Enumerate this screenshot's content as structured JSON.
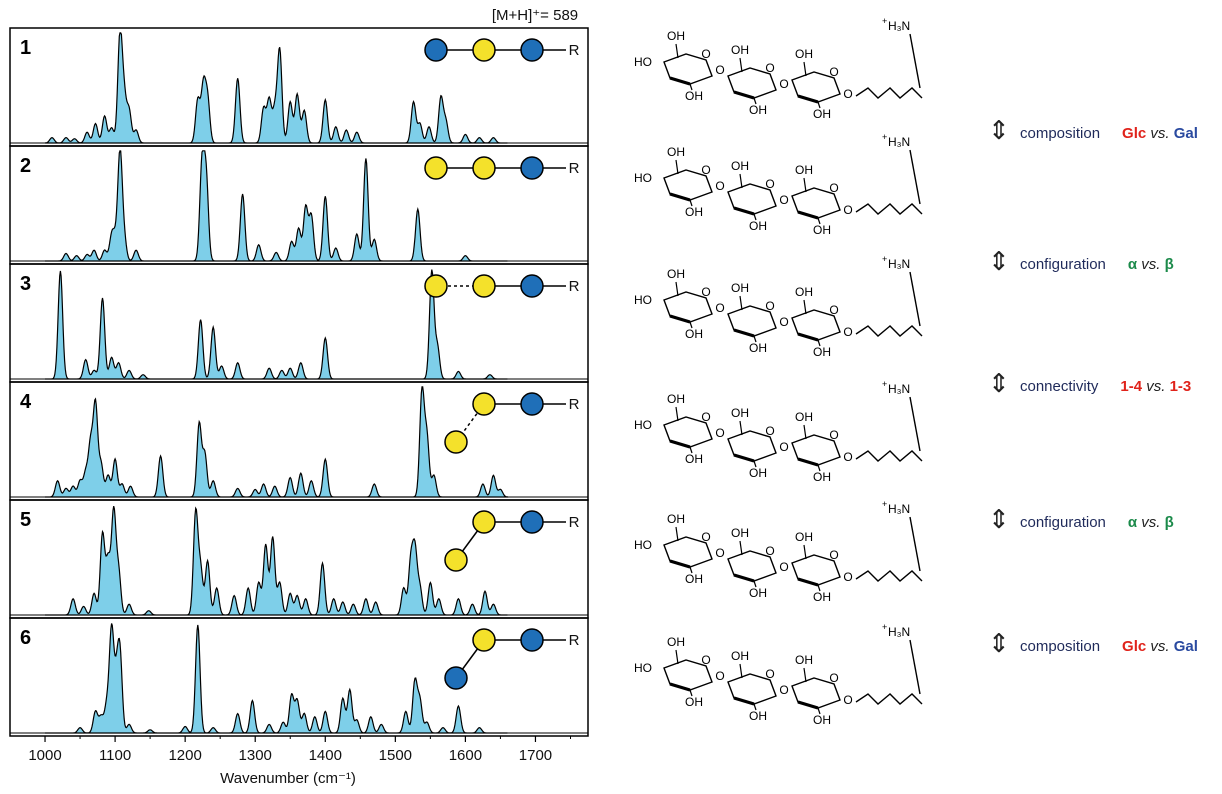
{
  "header_annotation": "[M+H]⁺= 589",
  "chart_data": {
    "type": "area",
    "xlabel": "Wavenumber (cm⁻¹)",
    "xlim": [
      950,
      1775
    ],
    "xticks": [
      1000,
      1100,
      1200,
      1300,
      1400,
      1500,
      1600,
      1700
    ],
    "ylim": [
      0,
      1
    ],
    "grid": false,
    "fill_color": "#7ecfe9",
    "line_color": "#000000",
    "spectra": [
      {
        "label": "1",
        "peaks": [
          [
            1010,
            0.05
          ],
          [
            1030,
            0.05
          ],
          [
            1042,
            0.04
          ],
          [
            1060,
            0.1
          ],
          [
            1072,
            0.18
          ],
          [
            1085,
            0.25
          ],
          [
            1095,
            0.14
          ],
          [
            1107,
            1.0
          ],
          [
            1113,
            0.4
          ],
          [
            1120,
            0.3
          ],
          [
            1130,
            0.12
          ],
          [
            1218,
            0.4
          ],
          [
            1226,
            0.52
          ],
          [
            1232,
            0.4
          ],
          [
            1275,
            0.6
          ],
          [
            1312,
            0.32
          ],
          [
            1320,
            0.4
          ],
          [
            1328,
            0.3
          ],
          [
            1335,
            0.86
          ],
          [
            1350,
            0.38
          ],
          [
            1360,
            0.45
          ],
          [
            1370,
            0.3
          ],
          [
            1400,
            0.4
          ],
          [
            1415,
            0.15
          ],
          [
            1430,
            0.12
          ],
          [
            1445,
            0.1
          ],
          [
            1526,
            0.38
          ],
          [
            1535,
            0.18
          ],
          [
            1548,
            0.15
          ],
          [
            1565,
            0.42
          ],
          [
            1572,
            0.2
          ],
          [
            1600,
            0.08
          ],
          [
            1620,
            0.05
          ],
          [
            1640,
            0.05
          ]
        ]
      },
      {
        "label": "2",
        "peaks": [
          [
            1030,
            0.07
          ],
          [
            1045,
            0.05
          ],
          [
            1060,
            0.06
          ],
          [
            1070,
            0.1
          ],
          [
            1085,
            0.1
          ],
          [
            1095,
            0.22
          ],
          [
            1100,
            0.17
          ],
          [
            1107,
            1.0
          ],
          [
            1113,
            0.2
          ],
          [
            1130,
            0.1
          ],
          [
            1224,
            0.88
          ],
          [
            1230,
            0.75
          ],
          [
            1282,
            0.62
          ],
          [
            1305,
            0.15
          ],
          [
            1330,
            0.08
          ],
          [
            1352,
            0.18
          ],
          [
            1362,
            0.3
          ],
          [
            1372,
            0.5
          ],
          [
            1380,
            0.42
          ],
          [
            1400,
            0.6
          ],
          [
            1415,
            0.12
          ],
          [
            1445,
            0.25
          ],
          [
            1458,
            0.95
          ],
          [
            1470,
            0.2
          ],
          [
            1532,
            0.48
          ],
          [
            1600,
            0.05
          ]
        ]
      },
      {
        "label": "3",
        "peaks": [
          [
            1022,
            1.0
          ],
          [
            1058,
            0.18
          ],
          [
            1070,
            0.08
          ],
          [
            1082,
            0.75
          ],
          [
            1095,
            0.2
          ],
          [
            1105,
            0.15
          ],
          [
            1120,
            0.08
          ],
          [
            1140,
            0.04
          ],
          [
            1222,
            0.55
          ],
          [
            1240,
            0.48
          ],
          [
            1252,
            0.12
          ],
          [
            1275,
            0.15
          ],
          [
            1320,
            0.1
          ],
          [
            1338,
            0.08
          ],
          [
            1350,
            0.1
          ],
          [
            1365,
            0.15
          ],
          [
            1400,
            0.38
          ],
          [
            1552,
            1.0
          ],
          [
            1560,
            0.3
          ],
          [
            1590,
            0.07
          ],
          [
            1635,
            0.04
          ]
        ]
      },
      {
        "label": "4",
        "peaks": [
          [
            1018,
            0.15
          ],
          [
            1030,
            0.08
          ],
          [
            1040,
            0.1
          ],
          [
            1050,
            0.15
          ],
          [
            1058,
            0.22
          ],
          [
            1065,
            0.48
          ],
          [
            1072,
            0.85
          ],
          [
            1080,
            0.3
          ],
          [
            1090,
            0.2
          ],
          [
            1100,
            0.35
          ],
          [
            1110,
            0.12
          ],
          [
            1122,
            0.1
          ],
          [
            1165,
            0.38
          ],
          [
            1220,
            0.68
          ],
          [
            1228,
            0.4
          ],
          [
            1240,
            0.15
          ],
          [
            1275,
            0.08
          ],
          [
            1300,
            0.07
          ],
          [
            1312,
            0.12
          ],
          [
            1328,
            0.1
          ],
          [
            1350,
            0.18
          ],
          [
            1365,
            0.22
          ],
          [
            1380,
            0.15
          ],
          [
            1400,
            0.35
          ],
          [
            1470,
            0.12
          ],
          [
            1538,
            0.98
          ],
          [
            1545,
            0.55
          ],
          [
            1555,
            0.2
          ],
          [
            1625,
            0.12
          ],
          [
            1640,
            0.2
          ],
          [
            1650,
            0.07
          ]
        ]
      },
      {
        "label": "5",
        "peaks": [
          [
            1040,
            0.15
          ],
          [
            1055,
            0.08
          ],
          [
            1070,
            0.2
          ],
          [
            1082,
            0.75
          ],
          [
            1090,
            0.5
          ],
          [
            1098,
            0.95
          ],
          [
            1105,
            0.4
          ],
          [
            1120,
            0.1
          ],
          [
            1148,
            0.04
          ],
          [
            1215,
            0.95
          ],
          [
            1222,
            0.42
          ],
          [
            1232,
            0.5
          ],
          [
            1245,
            0.25
          ],
          [
            1270,
            0.18
          ],
          [
            1290,
            0.25
          ],
          [
            1305,
            0.3
          ],
          [
            1315,
            0.65
          ],
          [
            1325,
            0.72
          ],
          [
            1335,
            0.3
          ],
          [
            1350,
            0.2
          ],
          [
            1360,
            0.18
          ],
          [
            1372,
            0.15
          ],
          [
            1396,
            0.48
          ],
          [
            1412,
            0.15
          ],
          [
            1425,
            0.12
          ],
          [
            1440,
            0.1
          ],
          [
            1458,
            0.15
          ],
          [
            1472,
            0.12
          ],
          [
            1512,
            0.25
          ],
          [
            1522,
            0.48
          ],
          [
            1528,
            0.58
          ],
          [
            1535,
            0.25
          ],
          [
            1550,
            0.3
          ],
          [
            1562,
            0.15
          ],
          [
            1590,
            0.15
          ],
          [
            1610,
            0.1
          ],
          [
            1628,
            0.22
          ],
          [
            1640,
            0.1
          ]
        ]
      },
      {
        "label": "6",
        "peaks": [
          [
            1050,
            0.05
          ],
          [
            1072,
            0.2
          ],
          [
            1080,
            0.15
          ],
          [
            1088,
            0.25
          ],
          [
            1095,
            0.95
          ],
          [
            1102,
            0.45
          ],
          [
            1107,
            0.7
          ],
          [
            1120,
            0.08
          ],
          [
            1150,
            0.03
          ],
          [
            1200,
            0.06
          ],
          [
            1218,
            1.0
          ],
          [
            1240,
            0.05
          ],
          [
            1275,
            0.18
          ],
          [
            1296,
            0.3
          ],
          [
            1320,
            0.08
          ],
          [
            1340,
            0.1
          ],
          [
            1352,
            0.35
          ],
          [
            1360,
            0.3
          ],
          [
            1370,
            0.18
          ],
          [
            1385,
            0.15
          ],
          [
            1400,
            0.2
          ],
          [
            1425,
            0.32
          ],
          [
            1435,
            0.4
          ],
          [
            1445,
            0.12
          ],
          [
            1465,
            0.15
          ],
          [
            1480,
            0.08
          ],
          [
            1515,
            0.2
          ],
          [
            1528,
            0.48
          ],
          [
            1535,
            0.3
          ],
          [
            1545,
            0.1
          ],
          [
            1568,
            0.05
          ],
          [
            1590,
            0.25
          ],
          [
            1620,
            0.05
          ]
        ]
      }
    ]
  },
  "glycans": [
    {
      "beads": [
        "blue",
        "yellow",
        "blue"
      ],
      "linkage": "solid",
      "branch": null,
      "end_label": "R"
    },
    {
      "beads": [
        "yellow",
        "yellow",
        "blue"
      ],
      "linkage": "solid",
      "branch": null,
      "end_label": "R"
    },
    {
      "beads": [
        "yellow",
        "yellow",
        "blue"
      ],
      "linkage": "dashed",
      "branch": null,
      "end_label": "R"
    },
    {
      "beads": [
        "yellow",
        "blue"
      ],
      "linkage": "solid",
      "branch": {
        "color": "yellow",
        "link": "dashed"
      },
      "end_label": "R"
    },
    {
      "beads": [
        "yellow",
        "blue"
      ],
      "linkage": "solid",
      "branch": {
        "color": "yellow",
        "link": "solid"
      },
      "end_label": "R"
    },
    {
      "beads": [
        "yellow",
        "blue"
      ],
      "linkage": "solid",
      "branch": {
        "color": "blue",
        "link": "solid"
      },
      "end_label": "R"
    }
  ],
  "bead_colors": {
    "blue": "#1f6fb8",
    "yellow": "#f4e12b"
  },
  "structure_chemistry": {
    "hydroxyl": "OH",
    "hydroxyl_left": "HO",
    "ring_oxygen": "O",
    "amine": "H₃N",
    "amine_charge": "+"
  },
  "comparisons": [
    {
      "label": "composition",
      "a": "Glc",
      "a_color": "red",
      "vs": "vs.",
      "b": "Gal",
      "b_color": "blue"
    },
    {
      "label": "configuration",
      "a": "α",
      "a_color": "green",
      "vs": "vs.",
      "b": "β",
      "b_color": "green"
    },
    {
      "label": "connectivity",
      "a": "1-4",
      "a_color": "red",
      "vs": "vs.",
      "b": "1-3",
      "b_color": "red"
    },
    {
      "label": "configuration",
      "a": "α",
      "a_color": "green",
      "vs": "vs.",
      "b": "β",
      "b_color": "green"
    },
    {
      "label": "composition",
      "a": "Glc",
      "a_color": "red",
      "vs": "vs.",
      "b": "Gal",
      "b_color": "blue"
    }
  ]
}
